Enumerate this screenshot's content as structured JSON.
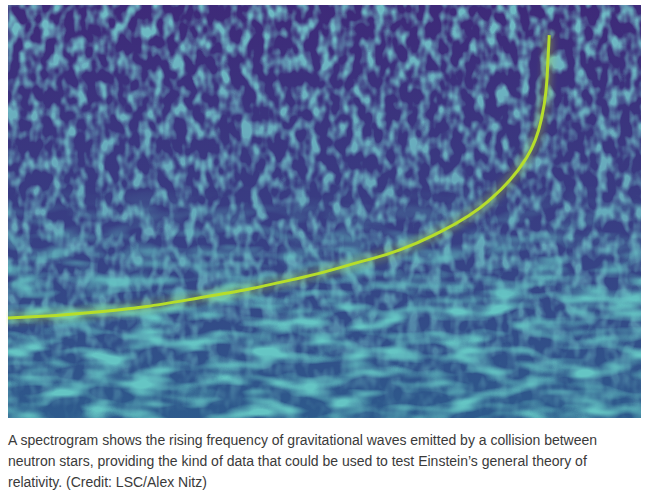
{
  "chart_data": {
    "type": "line",
    "x": [
      0,
      14.5,
      30.3,
      46.1,
      55.6,
      61.9,
      68.2,
      73.0,
      76.1,
      79.3,
      81.7,
      83.3,
      84.4,
      85.0,
      85.3,
      85.5
    ],
    "values": [
      24.2,
      25.7,
      29.1,
      33.9,
      37.8,
      40.7,
      45.0,
      49.2,
      52.8,
      57.6,
      62.5,
      67.3,
      73.4,
      79.4,
      86.7,
      92.7
    ],
    "xlim": [
      0,
      100
    ],
    "ylim": [
      0,
      100
    ],
    "tick_labels": false,
    "grid": false,
    "color": "#b5de2b",
    "caption": "A spectrogram shows the rising frequency of gravitational waves emitted by a collision between neutron stars, providing the kind of data that could be used to test Einstein’s general theory of relativity. (Credit: LSC/Alex Nitz)"
  }
}
